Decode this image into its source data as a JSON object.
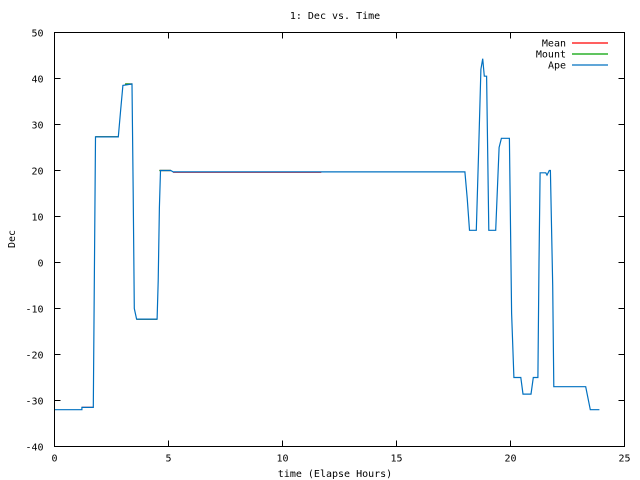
{
  "chart_data": {
    "type": "line",
    "title": "1: Dec vs. Time",
    "xlabel": "time (Elapse Hours)",
    "ylabel": "Dec",
    "xlim": [
      0,
      25
    ],
    "ylim": [
      -40,
      50
    ],
    "xticks": [
      0,
      5,
      10,
      15,
      20,
      25
    ],
    "yticks": [
      -40,
      -30,
      -20,
      -10,
      0,
      10,
      20,
      30,
      40,
      50
    ],
    "grid": false,
    "legend": "top-right",
    "series": [
      {
        "name": "Mean",
        "color": "#ff0000",
        "points": [
          [
            1.2,
            -31.5
          ],
          [
            1.7,
            -31.5
          ],
          [
            null,
            null
          ],
          [
            1.8,
            27.3
          ],
          [
            2.8,
            27.3
          ],
          [
            null,
            null
          ],
          [
            3.1,
            38.8
          ],
          [
            3.4,
            38.8
          ],
          [
            null,
            null
          ],
          [
            3.6,
            -12.3
          ],
          [
            4.5,
            -12.3
          ],
          [
            null,
            null
          ],
          [
            4.6,
            20.0
          ],
          [
            5.1,
            20.0
          ],
          [
            null,
            null
          ],
          [
            5.2,
            19.6
          ],
          [
            11.7,
            19.6
          ]
        ]
      },
      {
        "name": "Mount",
        "color": "#00a000",
        "points": [
          [
            1.8,
            27.3
          ],
          [
            2.8,
            27.3
          ],
          [
            null,
            null
          ],
          [
            3.1,
            38.8
          ],
          [
            3.4,
            38.8
          ],
          [
            null,
            null
          ],
          [
            3.6,
            -12.3
          ],
          [
            4.5,
            -12.3
          ],
          [
            null,
            null
          ],
          [
            4.6,
            20.0
          ],
          [
            5.1,
            20.0
          ]
        ]
      },
      {
        "name": "Ape",
        "color": "#0070c0",
        "points": [
          [
            0.0,
            -32.0
          ],
          [
            1.2,
            -32.0
          ],
          [
            1.2,
            -31.5
          ],
          [
            1.7,
            -31.5
          ],
          [
            1.75,
            -2.0
          ],
          [
            1.8,
            27.3
          ],
          [
            2.8,
            27.3
          ],
          [
            2.9,
            33.0
          ],
          [
            3.0,
            38.5
          ],
          [
            3.4,
            38.8
          ],
          [
            3.45,
            15.0
          ],
          [
            3.5,
            -10.0
          ],
          [
            3.6,
            -12.3
          ],
          [
            4.5,
            -12.3
          ],
          [
            4.55,
            -4.0
          ],
          [
            4.6,
            12.0
          ],
          [
            4.65,
            20.0
          ],
          [
            5.1,
            20.0
          ],
          [
            5.2,
            19.7
          ],
          [
            18.0,
            19.7
          ],
          [
            18.1,
            14.0
          ],
          [
            18.2,
            7.0
          ],
          [
            18.5,
            7.0
          ],
          [
            18.6,
            24.0
          ],
          [
            18.7,
            42.0
          ],
          [
            18.78,
            44.3
          ],
          [
            18.85,
            40.5
          ],
          [
            18.95,
            40.5
          ],
          [
            19.05,
            7.0
          ],
          [
            19.35,
            7.0
          ],
          [
            19.5,
            25.0
          ],
          [
            19.6,
            27.0
          ],
          [
            19.95,
            27.0
          ],
          [
            20.05,
            -11.0
          ],
          [
            20.15,
            -25.0
          ],
          [
            20.45,
            -25.0
          ],
          [
            20.55,
            -28.6
          ],
          [
            20.9,
            -28.6
          ],
          [
            21.0,
            -25.0
          ],
          [
            21.2,
            -25.0
          ],
          [
            21.25,
            0.0
          ],
          [
            21.3,
            19.5
          ],
          [
            21.55,
            19.5
          ],
          [
            21.6,
            19.0
          ],
          [
            21.7,
            20.0
          ],
          [
            21.75,
            20.0
          ],
          [
            21.85,
            -5.0
          ],
          [
            21.9,
            -27.0
          ],
          [
            23.3,
            -27.0
          ],
          [
            23.5,
            -32.0
          ],
          [
            23.9,
            -32.0
          ]
        ]
      }
    ]
  }
}
